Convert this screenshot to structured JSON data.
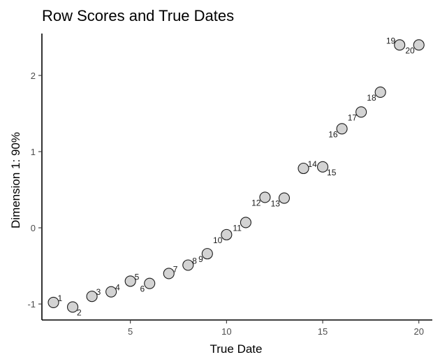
{
  "chart_data": {
    "type": "scatter",
    "title": "Row Scores and True Dates",
    "xlabel": "True Date",
    "ylabel": "Dimension 1:  90%",
    "xlim": [
      0.4,
      20.7
    ],
    "ylim": [
      -1.21,
      2.55
    ],
    "xticks": [
      5,
      10,
      15,
      20
    ],
    "yticks": [
      -1,
      0,
      1,
      2
    ],
    "grid": false,
    "legend": "none",
    "point_fill": "#d3d3d3",
    "point_stroke": "#1a1a1a",
    "points": [
      {
        "label": "1",
        "x": 1,
        "y": -0.98
      },
      {
        "label": "2",
        "x": 2,
        "y": -1.04
      },
      {
        "label": "3",
        "x": 3,
        "y": -0.9
      },
      {
        "label": "4",
        "x": 4,
        "y": -0.84
      },
      {
        "label": "5",
        "x": 5,
        "y": -0.7
      },
      {
        "label": "6",
        "x": 6,
        "y": -0.73
      },
      {
        "label": "7",
        "x": 7,
        "y": -0.6
      },
      {
        "label": "8",
        "x": 8,
        "y": -0.49
      },
      {
        "label": "9",
        "x": 9,
        "y": -0.34
      },
      {
        "label": "10",
        "x": 10,
        "y": -0.09
      },
      {
        "label": "11",
        "x": 11,
        "y": 0.07
      },
      {
        "label": "12",
        "x": 12,
        "y": 0.4
      },
      {
        "label": "13",
        "x": 13,
        "y": 0.39
      },
      {
        "label": "14",
        "x": 14,
        "y": 0.78
      },
      {
        "label": "15",
        "x": 15,
        "y": 0.8
      },
      {
        "label": "16",
        "x": 16,
        "y": 1.3
      },
      {
        "label": "17",
        "x": 17,
        "y": 1.52
      },
      {
        "label": "18",
        "x": 18,
        "y": 1.78
      },
      {
        "label": "19",
        "x": 19,
        "y": 2.4
      },
      {
        "label": "20",
        "x": 20,
        "y": 2.4
      }
    ]
  }
}
